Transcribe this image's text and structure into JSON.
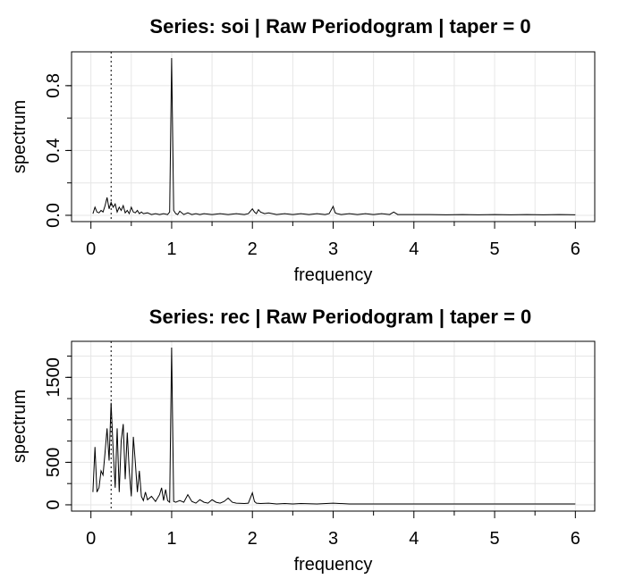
{
  "chart_data": [
    {
      "type": "line",
      "title": "Series: soi  |  Raw Periodogram  |  taper = 0",
      "xlabel": "frequency",
      "ylabel": "spectrum",
      "xlim": [
        0,
        6
      ],
      "ylim": [
        0,
        0.97
      ],
      "xticks": [
        "0",
        "1",
        "2",
        "3",
        "4",
        "5",
        "6"
      ],
      "yticks": [
        "0.0",
        "0.4",
        "0.8"
      ],
      "ytick_values": [
        0,
        0.4,
        0.8
      ],
      "grid": true,
      "reference_line_x": 0.25,
      "series": [
        {
          "x": [
            0.025,
            0.05,
            0.075,
            0.1,
            0.125,
            0.15,
            0.175,
            0.2,
            0.225,
            0.25,
            0.275,
            0.3,
            0.325,
            0.35,
            0.375,
            0.4,
            0.425,
            0.45,
            0.475,
            0.5,
            0.525,
            0.55,
            0.575,
            0.6,
            0.625,
            0.65,
            0.7,
            0.75,
            0.8,
            0.85,
            0.9,
            0.95,
            0.975,
            1.0,
            1.025,
            1.05,
            1.075,
            1.1,
            1.15,
            1.2,
            1.25,
            1.3,
            1.35,
            1.4,
            1.5,
            1.6,
            1.7,
            1.8,
            1.9,
            1.95,
            2.0,
            2.025,
            2.05,
            2.075,
            2.1,
            2.15,
            2.2,
            2.3,
            2.4,
            2.5,
            2.6,
            2.7,
            2.8,
            2.9,
            2.95,
            3.0,
            3.025,
            3.05,
            3.1,
            3.2,
            3.3,
            3.4,
            3.5,
            3.6,
            3.7,
            3.75,
            3.8,
            3.9,
            4.0,
            4.2,
            4.4,
            4.6,
            4.8,
            5.0,
            5.2,
            5.4,
            5.6,
            5.8,
            6.0
          ],
          "values": [
            0.01,
            0.05,
            0.02,
            0.015,
            0.03,
            0.02,
            0.06,
            0.11,
            0.04,
            0.08,
            0.05,
            0.07,
            0.02,
            0.05,
            0.03,
            0.06,
            0.015,
            0.03,
            0.01,
            0.05,
            0.02,
            0.015,
            0.03,
            0.01,
            0.02,
            0.01,
            0.015,
            0.005,
            0.01,
            0.005,
            0.01,
            0.005,
            0.02,
            0.97,
            0.03,
            0.01,
            0.005,
            0.025,
            0.005,
            0.015,
            0.005,
            0.01,
            0.005,
            0.01,
            0.005,
            0.01,
            0.005,
            0.01,
            0.005,
            0.01,
            0.04,
            0.02,
            0.01,
            0.035,
            0.02,
            0.01,
            0.015,
            0.005,
            0.01,
            0.005,
            0.01,
            0.005,
            0.01,
            0.005,
            0.01,
            0.055,
            0.015,
            0.01,
            0.005,
            0.01,
            0.005,
            0.01,
            0.005,
            0.01,
            0.005,
            0.02,
            0.005,
            0.005,
            0.005,
            0.005,
            0.003,
            0.005,
            0.003,
            0.005,
            0.003,
            0.005,
            0.003,
            0.005,
            0.003
          ]
        }
      ]
    },
    {
      "type": "line",
      "title": "Series: rec  |  Raw Periodogram  |  taper = 0",
      "xlabel": "frequency",
      "ylabel": "spectrum",
      "xlim": [
        0,
        6
      ],
      "ylim": [
        0,
        1850
      ],
      "xticks": [
        "0",
        "1",
        "2",
        "3",
        "4",
        "5",
        "6"
      ],
      "yticks": [
        "0",
        "500",
        "1500"
      ],
      "ytick_values": [
        0,
        500,
        1500
      ],
      "grid": true,
      "reference_line_x": 0.25,
      "series": [
        {
          "x": [
            0.025,
            0.05,
            0.075,
            0.1,
            0.125,
            0.15,
            0.175,
            0.2,
            0.225,
            0.25,
            0.275,
            0.3,
            0.325,
            0.35,
            0.375,
            0.4,
            0.425,
            0.45,
            0.475,
            0.5,
            0.525,
            0.55,
            0.575,
            0.6,
            0.625,
            0.65,
            0.675,
            0.7,
            0.75,
            0.8,
            0.85,
            0.875,
            0.9,
            0.925,
            0.95,
            0.975,
            1.0,
            1.025,
            1.05,
            1.1,
            1.15,
            1.2,
            1.25,
            1.3,
            1.35,
            1.4,
            1.45,
            1.5,
            1.55,
            1.6,
            1.65,
            1.7,
            1.75,
            1.8,
            1.9,
            1.95,
            2.0,
            2.025,
            2.05,
            2.1,
            2.2,
            2.3,
            2.4,
            2.5,
            2.6,
            2.8,
            3.0,
            3.2,
            3.5,
            4.0,
            4.5,
            5.0,
            5.5,
            6.0
          ],
          "values": [
            150,
            680,
            150,
            200,
            400,
            350,
            620,
            900,
            520,
            1200,
            650,
            200,
            900,
            150,
            750,
            950,
            300,
            850,
            400,
            100,
            800,
            500,
            150,
            400,
            100,
            50,
            150,
            60,
            100,
            40,
            120,
            200,
            50,
            180,
            50,
            30,
            1850,
            40,
            30,
            50,
            30,
            120,
            40,
            20,
            60,
            30,
            20,
            60,
            30,
            20,
            40,
            80,
            30,
            20,
            15,
            20,
            140,
            40,
            20,
            15,
            20,
            10,
            15,
            10,
            15,
            10,
            20,
            10,
            10,
            10,
            10,
            10,
            10,
            10
          ]
        }
      ]
    }
  ]
}
